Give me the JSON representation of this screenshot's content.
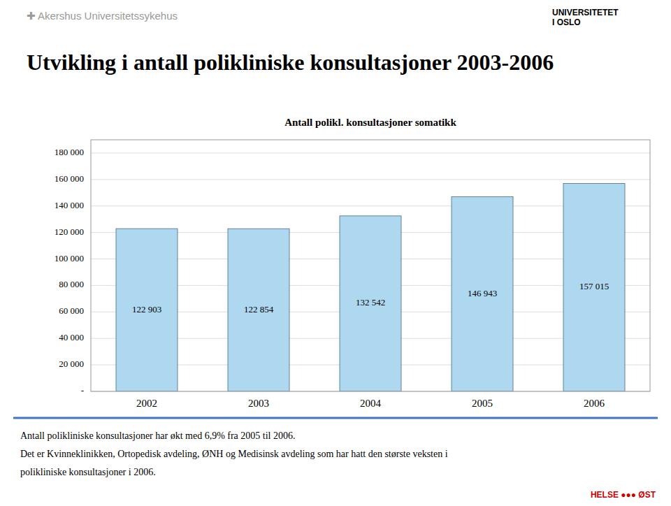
{
  "chart_data": {
    "type": "bar",
    "title": "Utvikling i antall polikliniske konsultasjoner 2003-2006",
    "subtitle": "Antall polikl. konsultasjoner somatikk",
    "categories": [
      "2002",
      "2003",
      "2004",
      "2005",
      "2006"
    ],
    "values": [
      122903,
      122854,
      132542,
      146943,
      157015
    ],
    "value_labels": [
      "122 903",
      "122 854",
      "132 542",
      "146 943",
      "157 015"
    ],
    "data_labels": true,
    "color": "#add8f0",
    "ylim": [
      0,
      190000
    ],
    "yticks": [
      {
        "value": 0,
        "label": "-"
      },
      {
        "value": 20000,
        "label": "20 000"
      },
      {
        "value": 40000,
        "label": "40 000"
      },
      {
        "value": 60000,
        "label": "60 000"
      },
      {
        "value": 80000,
        "label": "80 000"
      },
      {
        "value": 100000,
        "label": "100 000"
      },
      {
        "value": 120000,
        "label": "120 000"
      },
      {
        "value": 140000,
        "label": "140 000"
      },
      {
        "value": 160000,
        "label": "160 000"
      },
      {
        "value": 180000,
        "label": "180 000"
      }
    ],
    "grid": true,
    "annotations": [
      "✚  Akershus Universitetssykehus",
      "UNIVERSITETET\nI OSLO",
      "Antall polikliniske konsultasjoner har økt med 6,9% fra 2005 til 2006.",
      "Det er Kvinneklinikken, Ortopedisk avdeling, ØNH og Medisinsk avdeling som har hatt den største veksten i",
      "polikliniske konsultasjoner i 2006.",
      "HELSE  ●●●  ØST"
    ]
  }
}
